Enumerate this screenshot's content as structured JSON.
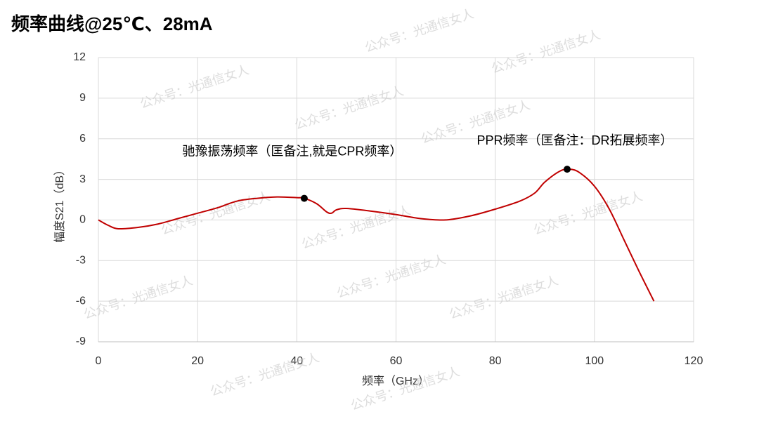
{
  "chart_data": {
    "type": "line",
    "title": "频率曲线@25℃、28mA",
    "xlabel": "频率（GHz）",
    "ylabel": "幅度S21（dB）",
    "watermark": "公众号：光通信女人",
    "x": [
      0,
      2,
      4,
      8,
      12,
      16,
      20,
      24,
      28,
      32,
      36,
      40,
      41.5,
      44,
      46,
      47,
      48,
      50,
      55,
      60,
      65,
      70,
      75,
      80,
      85,
      88,
      90,
      93,
      95,
      97,
      100,
      103,
      106,
      109,
      112
    ],
    "series": [
      {
        "name": "S21",
        "color": "#c00000",
        "values": [
          0,
          -0.4,
          -0.65,
          -0.55,
          -0.3,
          0.1,
          0.5,
          0.9,
          1.4,
          1.6,
          1.7,
          1.65,
          1.6,
          1.2,
          0.6,
          0.5,
          0.75,
          0.85,
          0.65,
          0.4,
          0.1,
          0.0,
          0.3,
          0.8,
          1.4,
          2.0,
          2.8,
          3.6,
          3.75,
          3.5,
          2.5,
          0.8,
          -1.5,
          -3.8,
          -6.0
        ]
      }
    ],
    "annotations": [
      {
        "text": "驰豫振荡频率（匡备注,就是CPR频率）",
        "x": 41.5,
        "y": 1.6
      },
      {
        "text": "PPR频率（匡备注：DR拓展频率）",
        "x": 94.5,
        "y": 3.75
      }
    ],
    "xlim": [
      0,
      120
    ],
    "xticks": [
      0,
      20,
      40,
      60,
      80,
      100,
      120
    ],
    "ylim": [
      -9,
      12
    ],
    "yticks": [
      -9,
      -6,
      -3,
      0,
      3,
      6,
      9,
      12
    ],
    "grid": true
  }
}
